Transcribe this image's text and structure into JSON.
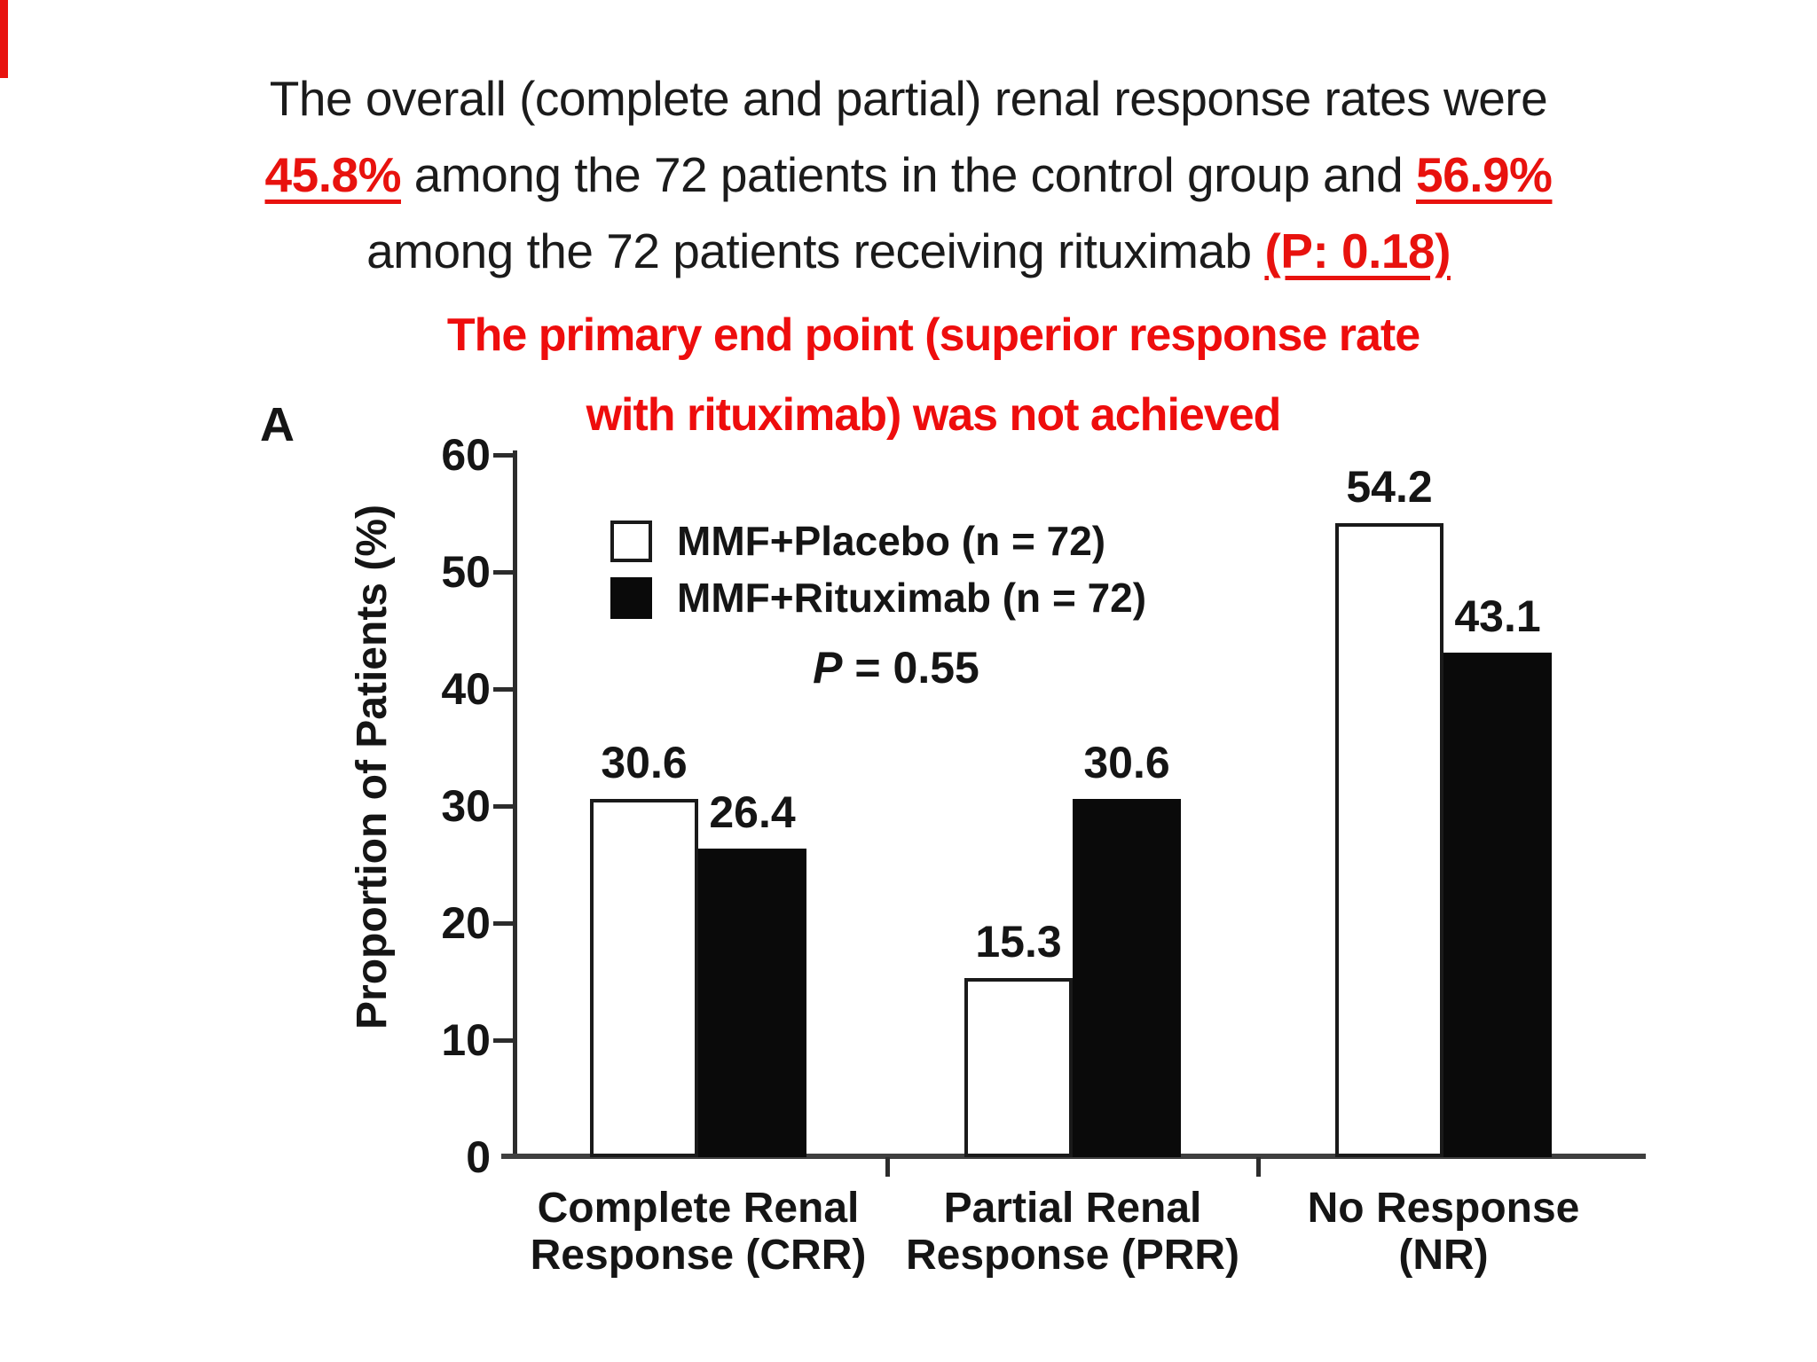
{
  "page": {
    "background": "#ffffff",
    "accent_red": "#e8120e",
    "callout_red": "#ee0d0d"
  },
  "decorations": {
    "corner_strip_color": "#e8120e"
  },
  "header": {
    "line1": "The overall (complete and partial) renal response rates were",
    "line2_highlight1": "45.8%",
    "line2_middle": " among the 72 patients in the control group and ",
    "line2_highlight2": "56.9%",
    "line3_prefix": "among the 72 patients receiving rituximab ",
    "line3_highlight": "(P: 0.18)"
  },
  "callout": {
    "line1": "The primary end point (superior response rate",
    "line2": "with rituximab) was not achieved"
  },
  "chart_data": {
    "type": "bar",
    "panel_label": "A",
    "ylabel": "Proportion of Patients (%)",
    "ylim": [
      0,
      60
    ],
    "yticks": [
      0,
      10,
      20,
      30,
      40,
      50,
      60
    ],
    "categories": [
      [
        "Complete Renal",
        "Response (CRR)"
      ],
      [
        "Partial Renal",
        "Response (PRR)"
      ],
      [
        "No Response",
        "(NR)"
      ]
    ],
    "series": [
      {
        "name": "MMF+Placebo (n = 72)",
        "swatch": "white",
        "values": [
          30.6,
          15.3,
          54.2
        ]
      },
      {
        "name": "MMF+Rituximab (n = 72)",
        "swatch": "black",
        "values": [
          26.4,
          30.6,
          43.1
        ]
      }
    ],
    "annotation_p": "P",
    "annotation_rest": " = 0.55",
    "legend_position": "upper-left-inside",
    "grid": false,
    "bar_colors": {
      "white": "#ffffff",
      "black": "#0a0a0a"
    }
  }
}
